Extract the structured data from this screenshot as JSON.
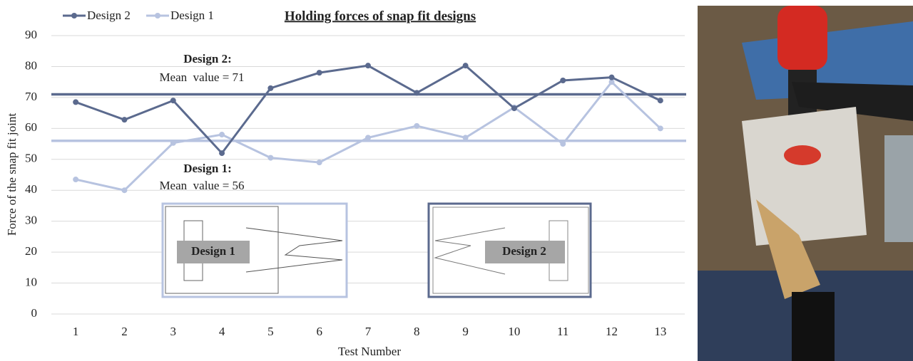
{
  "chart_data": {
    "type": "line",
    "title": "Holding forces of snap fit designs",
    "x_label": "Test Number",
    "y_label": "Force of the snap fit joint",
    "categories": [
      "1",
      "2",
      "3",
      "4",
      "5",
      "6",
      "7",
      "8",
      "9",
      "10",
      "11",
      "12",
      "13"
    ],
    "series": [
      {
        "name": "Design 2",
        "color": "#5b6a8e",
        "values": [
          68.5,
          62.8,
          69,
          52,
          73,
          78,
          80.3,
          71.5,
          80.3,
          66.5,
          75.5,
          76.5,
          69
        ]
      },
      {
        "name": "Design 1",
        "color": "#b7c3e0",
        "values": [
          43.5,
          40,
          55.3,
          58,
          50.5,
          49,
          57,
          60.8,
          57,
          66.8,
          55,
          75,
          60
        ]
      }
    ],
    "reference_lines": [
      {
        "value": 71,
        "color": "#5b6a8e",
        "title": "Design 2:",
        "label": "Mean  value = 71"
      },
      {
        "value": 56,
        "color": "#b7c3e0",
        "title": "Design 1:",
        "label": "Mean  value = 56"
      }
    ],
    "inset_labels": [
      "Design 1",
      "Design 2"
    ],
    "ylim": [
      0,
      90
    ],
    "yticks": [
      0,
      10,
      20,
      30,
      40,
      50,
      60,
      70,
      80,
      90
    ],
    "grid": true,
    "legend": "top-left"
  }
}
